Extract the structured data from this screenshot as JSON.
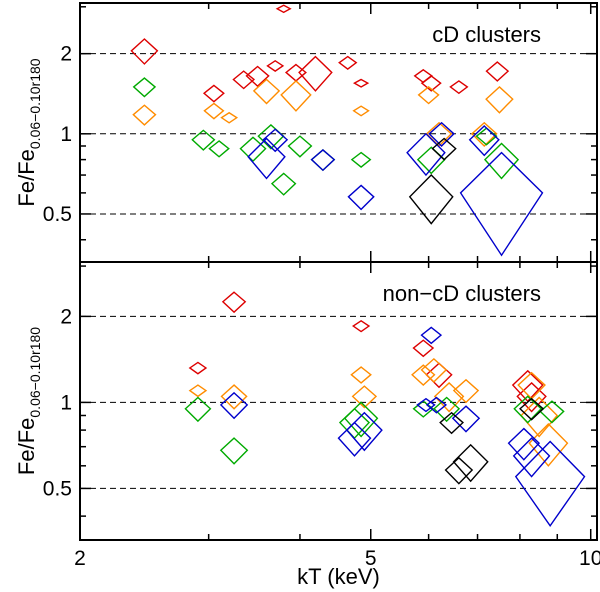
{
  "chart_data": [
    {
      "type": "scatter",
      "panel": "top",
      "panel_label": "cD clusters",
      "ylabel_main": "Fe/Fe",
      "ylabel_sub": "0.06−0.10r180",
      "xscale": "log",
      "yscale": "log",
      "xlim": [
        2,
        10.2
      ],
      "ylim": [
        0.33,
        3.1
      ],
      "yticks": [
        {
          "v": 0.5,
          "label": "0.5"
        },
        {
          "v": 1,
          "label": "1"
        },
        {
          "v": 2,
          "label": "2"
        }
      ],
      "reference_lines": [
        0.5,
        1,
        2
      ],
      "series": [
        {
          "name": "red",
          "color": "#dd0000",
          "points": [
            {
              "x": 2.45,
              "y": 2.05,
              "dy": 0.22
            },
            {
              "x": 3.05,
              "y": 1.42,
              "dy": 0.1
            },
            {
              "x": 3.35,
              "y": 1.6,
              "dy": 0.12
            },
            {
              "x": 3.5,
              "y": 1.65,
              "dy": 0.14
            },
            {
              "x": 3.7,
              "y": 1.8,
              "dy": 0.08
            },
            {
              "x": 3.8,
              "y": 2.95,
              "dy": 0.09
            },
            {
              "x": 3.95,
              "y": 1.7,
              "dy": 0.12
            },
            {
              "x": 4.2,
              "y": 1.7,
              "dy": 0.25
            },
            {
              "x": 4.65,
              "y": 1.85,
              "dy": 0.1
            },
            {
              "x": 4.85,
              "y": 1.55,
              "dy": 0.05
            },
            {
              "x": 5.9,
              "y": 1.65,
              "dy": 0.09
            },
            {
              "x": 6.05,
              "y": 1.55,
              "dy": 0.1
            },
            {
              "x": 6.6,
              "y": 1.5,
              "dy": 0.08
            },
            {
              "x": 7.45,
              "y": 1.72,
              "dy": 0.14
            }
          ]
        },
        {
          "name": "orange",
          "color": "#ff8c00",
          "points": [
            {
              "x": 2.45,
              "y": 1.18,
              "dy": 0.1
            },
            {
              "x": 3.05,
              "y": 1.22,
              "dy": 0.08
            },
            {
              "x": 3.2,
              "y": 1.15,
              "dy": 0.05
            },
            {
              "x": 3.6,
              "y": 1.45,
              "dy": 0.15
            },
            {
              "x": 3.95,
              "y": 1.4,
              "dy": 0.18
            },
            {
              "x": 4.85,
              "y": 1.22,
              "dy": 0.05
            },
            {
              "x": 6.0,
              "y": 1.4,
              "dy": 0.1
            },
            {
              "x": 6.2,
              "y": 1.0,
              "dy": 0.1
            },
            {
              "x": 7.15,
              "y": 1.0,
              "dy": 0.1
            },
            {
              "x": 7.5,
              "y": 1.35,
              "dy": 0.15
            }
          ]
        },
        {
          "name": "green",
          "color": "#00aa00",
          "points": [
            {
              "x": 2.45,
              "y": 1.5,
              "dy": 0.12
            },
            {
              "x": 2.95,
              "y": 0.95,
              "dy": 0.08
            },
            {
              "x": 3.1,
              "y": 0.88,
              "dy": 0.06
            },
            {
              "x": 3.45,
              "y": 0.88,
              "dy": 0.09
            },
            {
              "x": 3.65,
              "y": 0.98,
              "dy": 0.1
            },
            {
              "x": 3.8,
              "y": 0.65,
              "dy": 0.06
            },
            {
              "x": 4.0,
              "y": 0.9,
              "dy": 0.08
            },
            {
              "x": 4.3,
              "y": 0.8,
              "dy": 0.07
            },
            {
              "x": 4.85,
              "y": 0.8,
              "dy": 0.05
            },
            {
              "x": 6.05,
              "y": 0.8,
              "dy": 0.09
            },
            {
              "x": 7.2,
              "y": 0.98,
              "dy": 0.07
            },
            {
              "x": 7.55,
              "y": 0.8,
              "dy": 0.12
            }
          ]
        },
        {
          "name": "blue",
          "color": "#0000cc",
          "points": [
            {
              "x": 3.6,
              "y": 0.82,
              "dy": 0.14
            },
            {
              "x": 3.7,
              "y": 0.95,
              "dy": 0.09
            },
            {
              "x": 4.3,
              "y": 0.8,
              "dy": 0.07
            },
            {
              "x": 4.85,
              "y": 0.58,
              "dy": 0.06
            },
            {
              "x": 5.95,
              "y": 0.85,
              "dy": 0.15
            },
            {
              "x": 6.25,
              "y": 1.0,
              "dy": 0.1
            },
            {
              "x": 7.15,
              "y": 0.95,
              "dy": 0.12
            },
            {
              "x": 7.55,
              "y": 0.6,
              "dy": 0.25
            }
          ]
        },
        {
          "name": "black",
          "color": "#000000",
          "points": [
            {
              "x": 6.05,
              "y": 0.58,
              "dy": 0.12
            },
            {
              "x": 6.3,
              "y": 0.88,
              "dy": 0.08
            }
          ]
        }
      ]
    },
    {
      "type": "scatter",
      "panel": "bottom",
      "panel_label": "non−cD clusters",
      "ylabel_main": "Fe/Fe",
      "ylabel_sub": "0.06−0.10r180",
      "xlabel": "kT (keV)",
      "xscale": "log",
      "yscale": "log",
      "xlim": [
        2,
        10.2
      ],
      "ylim": [
        0.33,
        3.1
      ],
      "xticks": [
        {
          "v": 2,
          "label": "2"
        },
        {
          "v": 5,
          "label": "5"
        },
        {
          "v": 10,
          "label": "10"
        }
      ],
      "yticks": [
        {
          "v": 0.5,
          "label": "0.5"
        },
        {
          "v": 1,
          "label": "1"
        },
        {
          "v": 2,
          "label": "2"
        }
      ],
      "reference_lines": [
        0.5,
        1,
        2
      ],
      "series": [
        {
          "name": "red",
          "color": "#dd0000",
          "points": [
            {
              "x": 2.9,
              "y": 1.32,
              "dy": 0.06
            },
            {
              "x": 3.25,
              "y": 2.25,
              "dy": 0.18
            },
            {
              "x": 4.85,
              "y": 1.85,
              "dy": 0.08
            },
            {
              "x": 5.9,
              "y": 1.55,
              "dy": 0.1
            },
            {
              "x": 6.2,
              "y": 1.25,
              "dy": 0.12
            },
            {
              "x": 8.2,
              "y": 1.15,
              "dy": 0.14
            },
            {
              "x": 8.3,
              "y": 1.05,
              "dy": 0.12
            }
          ]
        },
        {
          "name": "orange",
          "color": "#ff8c00",
          "points": [
            {
              "x": 2.9,
              "y": 1.1,
              "dy": 0.05
            },
            {
              "x": 3.25,
              "y": 1.05,
              "dy": 0.1
            },
            {
              "x": 4.85,
              "y": 1.25,
              "dy": 0.08
            },
            {
              "x": 4.9,
              "y": 1.05,
              "dy": 0.09
            },
            {
              "x": 5.9,
              "y": 1.25,
              "dy": 0.1
            },
            {
              "x": 6.1,
              "y": 1.3,
              "dy": 0.12
            },
            {
              "x": 6.4,
              "y": 1.05,
              "dy": 0.12
            },
            {
              "x": 6.75,
              "y": 1.1,
              "dy": 0.1
            },
            {
              "x": 8.3,
              "y": 1.15,
              "dy": 0.12
            },
            {
              "x": 8.5,
              "y": 0.9,
              "dy": 0.14
            },
            {
              "x": 8.75,
              "y": 0.72,
              "dy": 0.12
            }
          ]
        },
        {
          "name": "green",
          "color": "#00aa00",
          "points": [
            {
              "x": 2.9,
              "y": 0.95,
              "dy": 0.09
            },
            {
              "x": 3.25,
              "y": 0.68,
              "dy": 0.07
            },
            {
              "x": 4.75,
              "y": 0.85,
              "dy": 0.1
            },
            {
              "x": 4.85,
              "y": 0.88,
              "dy": 0.12
            },
            {
              "x": 5.9,
              "y": 0.95,
              "dy": 0.06
            },
            {
              "x": 6.35,
              "y": 0.95,
              "dy": 0.09
            },
            {
              "x": 8.2,
              "y": 0.95,
              "dy": 0.1
            },
            {
              "x": 8.85,
              "y": 0.93,
              "dy": 0.08
            }
          ]
        },
        {
          "name": "blue",
          "color": "#0000cc",
          "points": [
            {
              "x": 3.25,
              "y": 0.98,
              "dy": 0.1
            },
            {
              "x": 4.75,
              "y": 0.75,
              "dy": 0.1
            },
            {
              "x": 4.9,
              "y": 0.8,
              "dy": 0.12
            },
            {
              "x": 6.05,
              "y": 1.72,
              "dy": 0.11
            },
            {
              "x": 5.95,
              "y": 0.98,
              "dy": 0.05
            },
            {
              "x": 6.15,
              "y": 0.98,
              "dy": 0.06
            },
            {
              "x": 6.75,
              "y": 0.88,
              "dy": 0.09
            },
            {
              "x": 8.1,
              "y": 0.72,
              "dy": 0.09
            },
            {
              "x": 8.3,
              "y": 0.65,
              "dy": 0.1
            },
            {
              "x": 8.8,
              "y": 0.55,
              "dy": 0.18
            }
          ]
        },
        {
          "name": "black",
          "color": "#000000",
          "points": [
            {
              "x": 6.45,
              "y": 0.85,
              "dy": 0.07
            },
            {
              "x": 6.6,
              "y": 0.58,
              "dy": 0.06
            },
            {
              "x": 6.85,
              "y": 0.62,
              "dy": 0.09
            },
            {
              "x": 8.3,
              "y": 0.95,
              "dy": 0.08
            }
          ]
        }
      ]
    }
  ]
}
